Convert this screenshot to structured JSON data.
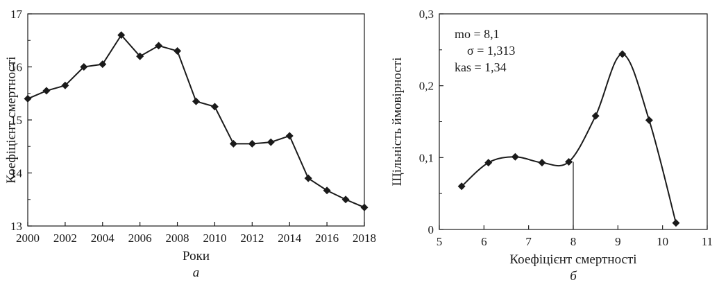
{
  "chart_data": [
    {
      "type": "line",
      "panel_label": "а",
      "xlabel": "Роки",
      "ylabel": "Коефіцієнт смертності",
      "xlim": [
        2000,
        2018
      ],
      "ylim": [
        13,
        17
      ],
      "x_ticks": [
        "2000",
        "2002",
        "2004",
        "2006",
        "2008",
        "2010",
        "2012",
        "2014",
        "2016",
        "2018"
      ],
      "y_ticks": [
        "13",
        "14",
        "15",
        "16",
        "17"
      ],
      "grid": false,
      "marker": "diamond",
      "series": [
        {
          "x": [
            2000,
            2001,
            2002,
            2003,
            2004,
            2005,
            2006,
            2007,
            2008,
            2009,
            2010,
            2011,
            2012,
            2013,
            2014,
            2015,
            2016,
            2017,
            2018
          ],
          "values": [
            15.4,
            15.55,
            15.65,
            16.0,
            16.05,
            16.6,
            16.2,
            16.4,
            16.3,
            15.35,
            15.25,
            14.55,
            14.55,
            14.58,
            14.7,
            13.9,
            13.67,
            13.5,
            13.35
          ]
        }
      ]
    },
    {
      "type": "line",
      "panel_label": "б",
      "xlabel": "Коефіцієнт смертності",
      "ylabel": "Щільність ймовірності",
      "xlim": [
        5,
        11
      ],
      "ylim": [
        0,
        0.3
      ],
      "x_ticks": [
        "5",
        "6",
        "7",
        "8",
        "9",
        "10",
        "11"
      ],
      "y_ticks": [
        "0",
        "0,1",
        "0,2",
        "0,3"
      ],
      "grid": false,
      "marker": "diamond",
      "smooth": true,
      "series": [
        {
          "x": [
            5.5,
            6.1,
            6.7,
            7.3,
            7.9,
            8.5,
            9.1,
            9.7,
            10.3
          ],
          "values": [
            0.06,
            0.093,
            0.101,
            0.093,
            0.094,
            0.158,
            0.244,
            0.152,
            0.009
          ]
        }
      ],
      "vertical_line_x": 8.0,
      "annotations": [
        "mo = 8,1",
        "σ = 1,313",
        "kas = 1,34"
      ]
    }
  ]
}
